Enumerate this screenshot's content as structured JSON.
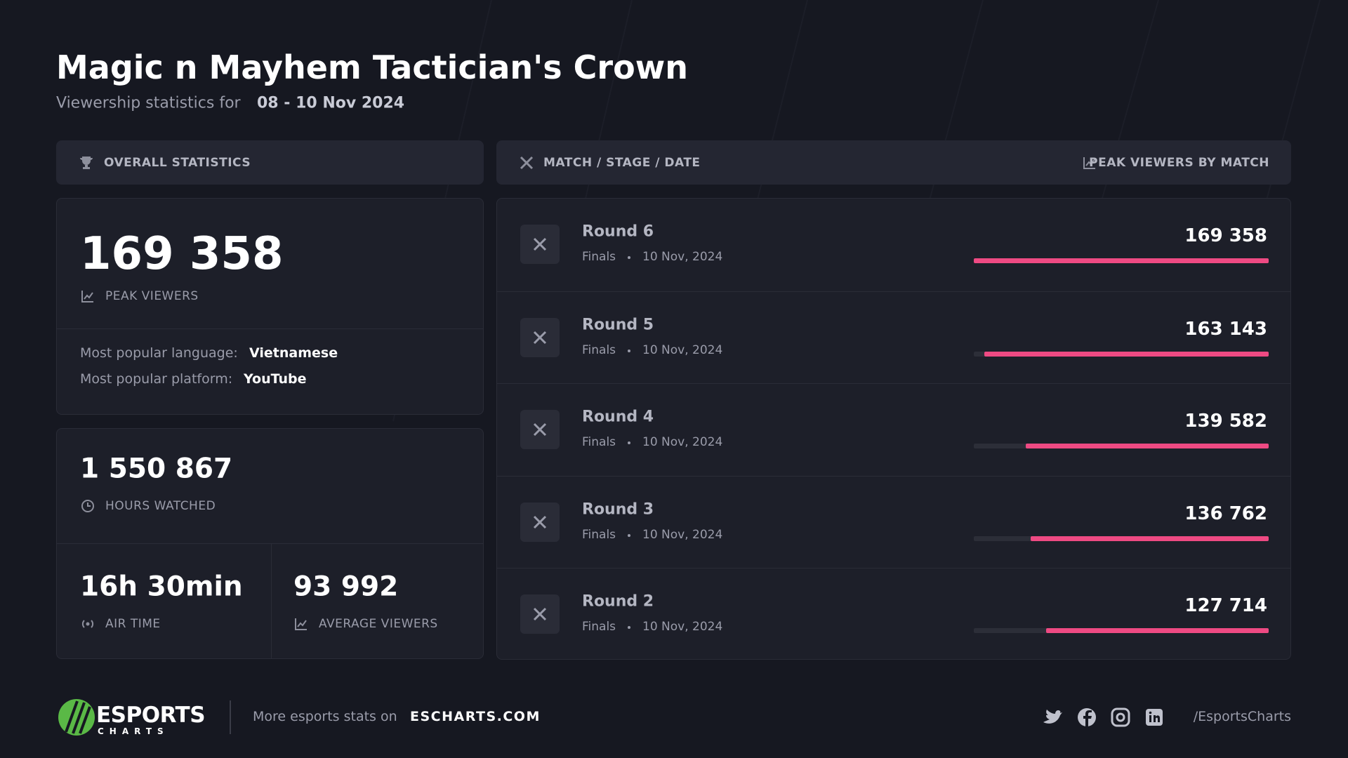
{
  "header": {
    "title": "Magic n Mayhem Tactician's Crown",
    "subtitle_label": "Viewership statistics for",
    "date_range": "08 - 10 Nov 2024"
  },
  "overall": {
    "heading": "OVERALL STATISTICS",
    "peak_viewers": {
      "value": "169 358",
      "label": "PEAK VIEWERS"
    },
    "language_label": "Most popular language:",
    "language": "Vietnamese",
    "platform_label": "Most popular platform:",
    "platform": "YouTube",
    "hours_watched": {
      "value": "1 550 867",
      "label": "HOURS WATCHED"
    },
    "air_time": {
      "value": "16h 30min",
      "label": "AIR TIME"
    },
    "average_viewers": {
      "value": "93 992",
      "label": "AVERAGE VIEWERS"
    }
  },
  "matches": {
    "heading": "MATCH / STAGE / DATE",
    "peak_heading": "PEAK VIEWERS BY MATCH",
    "bar_color": "#ee4a83",
    "rows": [
      {
        "name": "Round 6",
        "stage": "Finals",
        "date": "10 Nov, 2024",
        "peak_viewers": 169358,
        "peak_viewers_label": "169 358"
      },
      {
        "name": "Round 5",
        "stage": "Finals",
        "date": "10 Nov, 2024",
        "peak_viewers": 163143,
        "peak_viewers_label": "163 143"
      },
      {
        "name": "Round 4",
        "stage": "Finals",
        "date": "10 Nov, 2024",
        "peak_viewers": 139582,
        "peak_viewers_label": "139 582"
      },
      {
        "name": "Round 3",
        "stage": "Finals",
        "date": "10 Nov, 2024",
        "peak_viewers": 136762,
        "peak_viewers_label": "136 762"
      },
      {
        "name": "Round 2",
        "stage": "Finals",
        "date": "10 Nov, 2024",
        "peak_viewers": 127714,
        "peak_viewers_label": "127 714"
      }
    ]
  },
  "footer": {
    "logo_top": "ESPORTS",
    "logo_bottom": "CHARTS",
    "more_label": "More esports stats on",
    "site": "ESCHARTS.COM",
    "handle": "/EsportsCharts"
  }
}
